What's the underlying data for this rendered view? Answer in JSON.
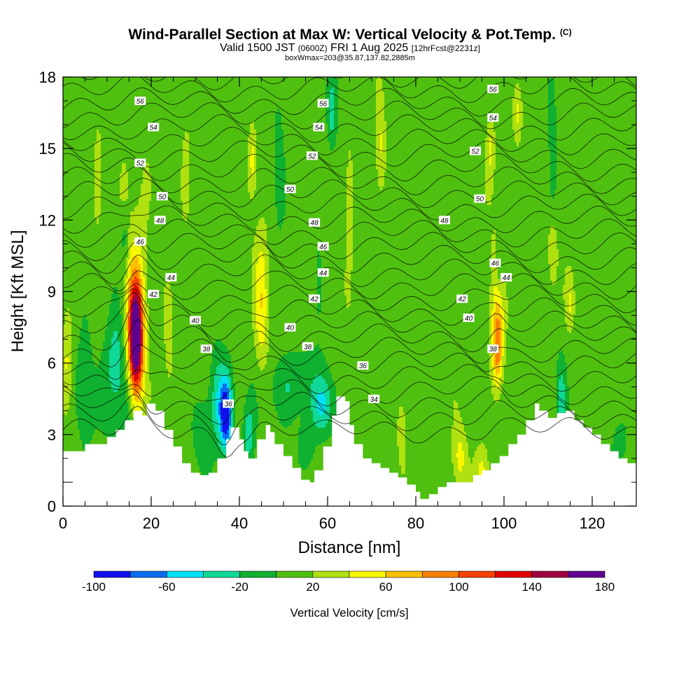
{
  "header": {
    "title": "Wind-Parallel Section at Max W: Vertical Velocity & Pot.Temp.",
    "title_mark": "(C)",
    "valid_a": "Valid 1500 JST",
    "valid_utc": "(0600Z)",
    "valid_b": "FRI 1 Aug 2025",
    "forecast": "[12hrFcst@2231z]",
    "box_info": "boxWmax=203@35.87,137.82,2885m"
  },
  "chart_data": {
    "type": "heatmap",
    "xlabel": "Distance [nm]",
    "ylabel": "Height [Kft MSL]",
    "xlim": [
      0,
      130
    ],
    "ylim": [
      0,
      18
    ],
    "x_ticks": [
      0,
      20,
      40,
      60,
      80,
      100,
      120
    ],
    "y_ticks": [
      0,
      3,
      6,
      9,
      12,
      15,
      18
    ],
    "colorbar": {
      "label": "Vertical Velocity [cm/s]",
      "ticks": [
        -100,
        -60,
        -20,
        20,
        60,
        100,
        140,
        180
      ],
      "bounds": [
        -100,
        -80,
        -60,
        -40,
        -20,
        0,
        20,
        40,
        60,
        80,
        100,
        120,
        140,
        160,
        180
      ],
      "colors": [
        "#1010ee",
        "#0a6cf0",
        "#00e0f8",
        "#10d898",
        "#10b030",
        "#50c010",
        "#b0e010",
        "#f8f800",
        "#f8c000",
        "#f88000",
        "#f84000",
        "#e00000",
        "#a00040",
        "#600090"
      ]
    },
    "background_w": 10,
    "terrain": [
      [
        0,
        2.3
      ],
      [
        3,
        2.3
      ],
      [
        5,
        2.6
      ],
      [
        8,
        2.6
      ],
      [
        10,
        2.9
      ],
      [
        12,
        3.2
      ],
      [
        14,
        3.6
      ],
      [
        16,
        4.0
      ],
      [
        18,
        3.8
      ],
      [
        19,
        4.3
      ],
      [
        21,
        4.0
      ],
      [
        23,
        3.2
      ],
      [
        25,
        2.5
      ],
      [
        27,
        1.8
      ],
      [
        29,
        1.4
      ],
      [
        31,
        1.3
      ],
      [
        33,
        1.4
      ],
      [
        35,
        2.0
      ],
      [
        37,
        2.8
      ],
      [
        38,
        3.3
      ],
      [
        40,
        2.8
      ],
      [
        41,
        2.3
      ],
      [
        42,
        2.0
      ],
      [
        44,
        2.8
      ],
      [
        46,
        3.4
      ],
      [
        47,
        3.1
      ],
      [
        48,
        2.6
      ],
      [
        50,
        2.1
      ],
      [
        52,
        1.6
      ],
      [
        54,
        1.1
      ],
      [
        56,
        1.0
      ],
      [
        57,
        1.5
      ],
      [
        59,
        2.5
      ],
      [
        61,
        3.8
      ],
      [
        62,
        4.6
      ],
      [
        64,
        4.4
      ],
      [
        65,
        3.4
      ],
      [
        66,
        2.6
      ],
      [
        68,
        2.0
      ],
      [
        70,
        1.8
      ],
      [
        72,
        1.6
      ],
      [
        74,
        1.4
      ],
      [
        76,
        1.2
      ],
      [
        78,
        0.9
      ],
      [
        80,
        0.6
      ],
      [
        81,
        0.3
      ],
      [
        83,
        0.5
      ],
      [
        85,
        0.8
      ],
      [
        87,
        1.0
      ],
      [
        89,
        1.0
      ],
      [
        91,
        1.0
      ],
      [
        93,
        1.3
      ],
      [
        95,
        1.5
      ],
      [
        97,
        1.8
      ],
      [
        99,
        2.1
      ],
      [
        101,
        2.6
      ],
      [
        103,
        3.0
      ],
      [
        105,
        3.6
      ],
      [
        107,
        4.3
      ],
      [
        108,
        4.0
      ],
      [
        110,
        3.7
      ],
      [
        112,
        3.9
      ],
      [
        114,
        4.0
      ],
      [
        116,
        3.6
      ],
      [
        118,
        3.3
      ],
      [
        120,
        3.0
      ],
      [
        122,
        2.6
      ],
      [
        124,
        2.3
      ],
      [
        126,
        2.0
      ],
      [
        128,
        1.8
      ],
      [
        130,
        1.6
      ]
    ],
    "w_features": [
      {
        "x": 16.5,
        "y": 7.0,
        "sx": 1.6,
        "sy": 2.3,
        "w": 175
      },
      {
        "x": 16.5,
        "y": 8.5,
        "sx": 2.6,
        "sy": 3.8,
        "w": 45
      },
      {
        "x": 15.0,
        "y": 3.5,
        "sx": 2.2,
        "sy": 2.5,
        "w": -20
      },
      {
        "x": 12.0,
        "y": 6.0,
        "sx": 2.5,
        "sy": 2.5,
        "w": -45
      },
      {
        "x": 5.0,
        "y": 4.5,
        "sx": 2.0,
        "sy": 2.5,
        "w": -25
      },
      {
        "x": 1.0,
        "y": 6.0,
        "sx": 1.2,
        "sy": 2.0,
        "w": 35
      },
      {
        "x": 14.0,
        "y": 11.5,
        "sx": 1.0,
        "sy": 1.6,
        "w": -40
      },
      {
        "x": 14.0,
        "y": 12.5,
        "sx": 1.2,
        "sy": 2.0,
        "w": 30
      },
      {
        "x": 37.0,
        "y": 3.8,
        "sx": 1.4,
        "sy": 1.5,
        "w": -105
      },
      {
        "x": 35.0,
        "y": 4.5,
        "sx": 2.0,
        "sy": 2.0,
        "w": -45
      },
      {
        "x": 32.0,
        "y": 3.0,
        "sx": 2.0,
        "sy": 1.5,
        "w": -25
      },
      {
        "x": 45.0,
        "y": 8.5,
        "sx": 1.5,
        "sy": 3.0,
        "w": 45
      },
      {
        "x": 43.0,
        "y": 14.5,
        "sx": 1.0,
        "sy": 1.5,
        "w": 40
      },
      {
        "x": 42.0,
        "y": 3.0,
        "sx": 1.2,
        "sy": 1.2,
        "w": -45
      },
      {
        "x": 52.0,
        "y": 5.0,
        "sx": 6.0,
        "sy": 1.5,
        "w": -30
      },
      {
        "x": 59.0,
        "y": 4.2,
        "sx": 2.5,
        "sy": 1.2,
        "w": -45
      },
      {
        "x": 55.0,
        "y": 2.5,
        "sx": 2.0,
        "sy": 1.0,
        "w": -30
      },
      {
        "x": 49.0,
        "y": 14.5,
        "sx": 1.0,
        "sy": 2.5,
        "w": -25
      },
      {
        "x": 61.0,
        "y": 16.5,
        "sx": 1.0,
        "sy": 1.5,
        "w": -35
      },
      {
        "x": 58.0,
        "y": 9.5,
        "sx": 1.0,
        "sy": 2.0,
        "w": -20
      },
      {
        "x": 72.0,
        "y": 15.0,
        "sx": 1.0,
        "sy": 2.0,
        "w": 30
      },
      {
        "x": 65.0,
        "y": 13.0,
        "sx": 1.0,
        "sy": 2.5,
        "w": 30
      },
      {
        "x": 98.5,
        "y": 6.5,
        "sx": 1.2,
        "sy": 1.7,
        "w": 65
      },
      {
        "x": 98.5,
        "y": 8.5,
        "sx": 1.5,
        "sy": 2.8,
        "w": 35
      },
      {
        "x": 97.0,
        "y": 15.0,
        "sx": 1.0,
        "sy": 1.5,
        "w": 35
      },
      {
        "x": 99.0,
        "y": 10.0,
        "sx": 1.0,
        "sy": 1.2,
        "w": -35
      },
      {
        "x": 103.0,
        "y": 16.5,
        "sx": 1.0,
        "sy": 1.2,
        "w": 35
      },
      {
        "x": 111.0,
        "y": 14.5,
        "sx": 1.0,
        "sy": 2.5,
        "w": -30
      },
      {
        "x": 113.0,
        "y": 4.5,
        "sx": 1.0,
        "sy": 1.5,
        "w": -35
      },
      {
        "x": 111.0,
        "y": 10.5,
        "sx": 1.0,
        "sy": 1.5,
        "w": 30
      },
      {
        "x": 115.0,
        "y": 8.5,
        "sx": 1.0,
        "sy": 1.2,
        "w": 30
      },
      {
        "x": 95.0,
        "y": 1.5,
        "sx": 1.5,
        "sy": 1.0,
        "w": 35
      },
      {
        "x": 90.0,
        "y": 2.0,
        "sx": 1.5,
        "sy": 1.2,
        "w": 35
      },
      {
        "x": 77.0,
        "y": 3.0,
        "sx": 1.0,
        "sy": 1.5,
        "w": 25
      },
      {
        "x": 126.0,
        "y": 2.6,
        "sx": 2.0,
        "sy": 1.0,
        "w": -25
      },
      {
        "x": 8.0,
        "y": 14.0,
        "sx": 1.0,
        "sy": 2.0,
        "w": 30
      },
      {
        "x": 24.0,
        "y": 7.0,
        "sx": 1.0,
        "sy": 2.0,
        "w": 30
      },
      {
        "x": 28.0,
        "y": 14.0,
        "sx": 1.0,
        "sy": 2.0,
        "w": 30
      }
    ],
    "theta_labels": [
      {
        "text": "56",
        "x": 17.5,
        "y": 17.0
      },
      {
        "text": "54",
        "x": 20.5,
        "y": 15.9
      },
      {
        "text": "52",
        "x": 17.5,
        "y": 14.4
      },
      {
        "text": "50",
        "x": 22.5,
        "y": 13.0
      },
      {
        "text": "48",
        "x": 22.0,
        "y": 12.0
      },
      {
        "text": "46",
        "x": 17.5,
        "y": 11.1
      },
      {
        "text": "44",
        "x": 24.5,
        "y": 9.6
      },
      {
        "text": "42",
        "x": 20.5,
        "y": 8.9
      },
      {
        "text": "40",
        "x": 30.0,
        "y": 7.8
      },
      {
        "text": "38",
        "x": 32.5,
        "y": 6.6
      },
      {
        "text": "36",
        "x": 37.5,
        "y": 4.3
      },
      {
        "text": "56",
        "x": 59.0,
        "y": 16.9
      },
      {
        "text": "54",
        "x": 58.0,
        "y": 15.9
      },
      {
        "text": "52",
        "x": 56.5,
        "y": 14.7
      },
      {
        "text": "50",
        "x": 51.5,
        "y": 13.3
      },
      {
        "text": "48",
        "x": 57.0,
        "y": 11.9
      },
      {
        "text": "46",
        "x": 59.0,
        "y": 10.9
      },
      {
        "text": "44",
        "x": 59.0,
        "y": 9.8
      },
      {
        "text": "42",
        "x": 57.0,
        "y": 8.7
      },
      {
        "text": "40",
        "x": 51.5,
        "y": 7.5
      },
      {
        "text": "38",
        "x": 55.5,
        "y": 6.7
      },
      {
        "text": "36",
        "x": 68.0,
        "y": 5.9
      },
      {
        "text": "34",
        "x": 70.5,
        "y": 4.5
      },
      {
        "text": "56",
        "x": 97.5,
        "y": 17.5
      },
      {
        "text": "54",
        "x": 97.5,
        "y": 16.3
      },
      {
        "text": "52",
        "x": 93.5,
        "y": 14.9
      },
      {
        "text": "50",
        "x": 94.5,
        "y": 12.9
      },
      {
        "text": "48",
        "x": 86.5,
        "y": 12.0
      },
      {
        "text": "46",
        "x": 98.0,
        "y": 10.2
      },
      {
        "text": "44",
        "x": 100.5,
        "y": 9.6
      },
      {
        "text": "42",
        "x": 90.5,
        "y": 8.7
      },
      {
        "text": "40",
        "x": 92.0,
        "y": 7.9
      },
      {
        "text": "38",
        "x": 97.5,
        "y": 6.6
      }
    ]
  }
}
